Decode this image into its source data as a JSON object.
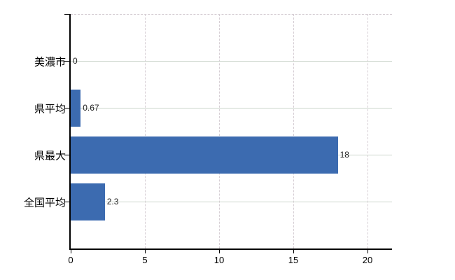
{
  "chart": {
    "title": "",
    "background": "#ffffff",
    "bar_color": "#3c6bb0",
    "axis_color": "#000000",
    "h_grid_color": "#ccd6cc",
    "v_grid_color": "#d6ced4",
    "text_color": "#000000"
  },
  "chart_data": {
    "type": "bar",
    "orientation": "horizontal",
    "categories": [
      "美濃市",
      "県平均",
      "県最大",
      "全国平均"
    ],
    "values": [
      0,
      0.67,
      18,
      2.3
    ],
    "value_labels": [
      "0",
      "0.67",
      "18",
      "2.3"
    ],
    "x_tick_labels": [
      "0",
      "5",
      "10",
      "15",
      "20"
    ],
    "x_tick_values": [
      0,
      5,
      10,
      15,
      20
    ],
    "xlim": [
      0,
      21.65
    ],
    "xlabel": "",
    "ylabel": "",
    "grid": true,
    "legend": "none"
  }
}
